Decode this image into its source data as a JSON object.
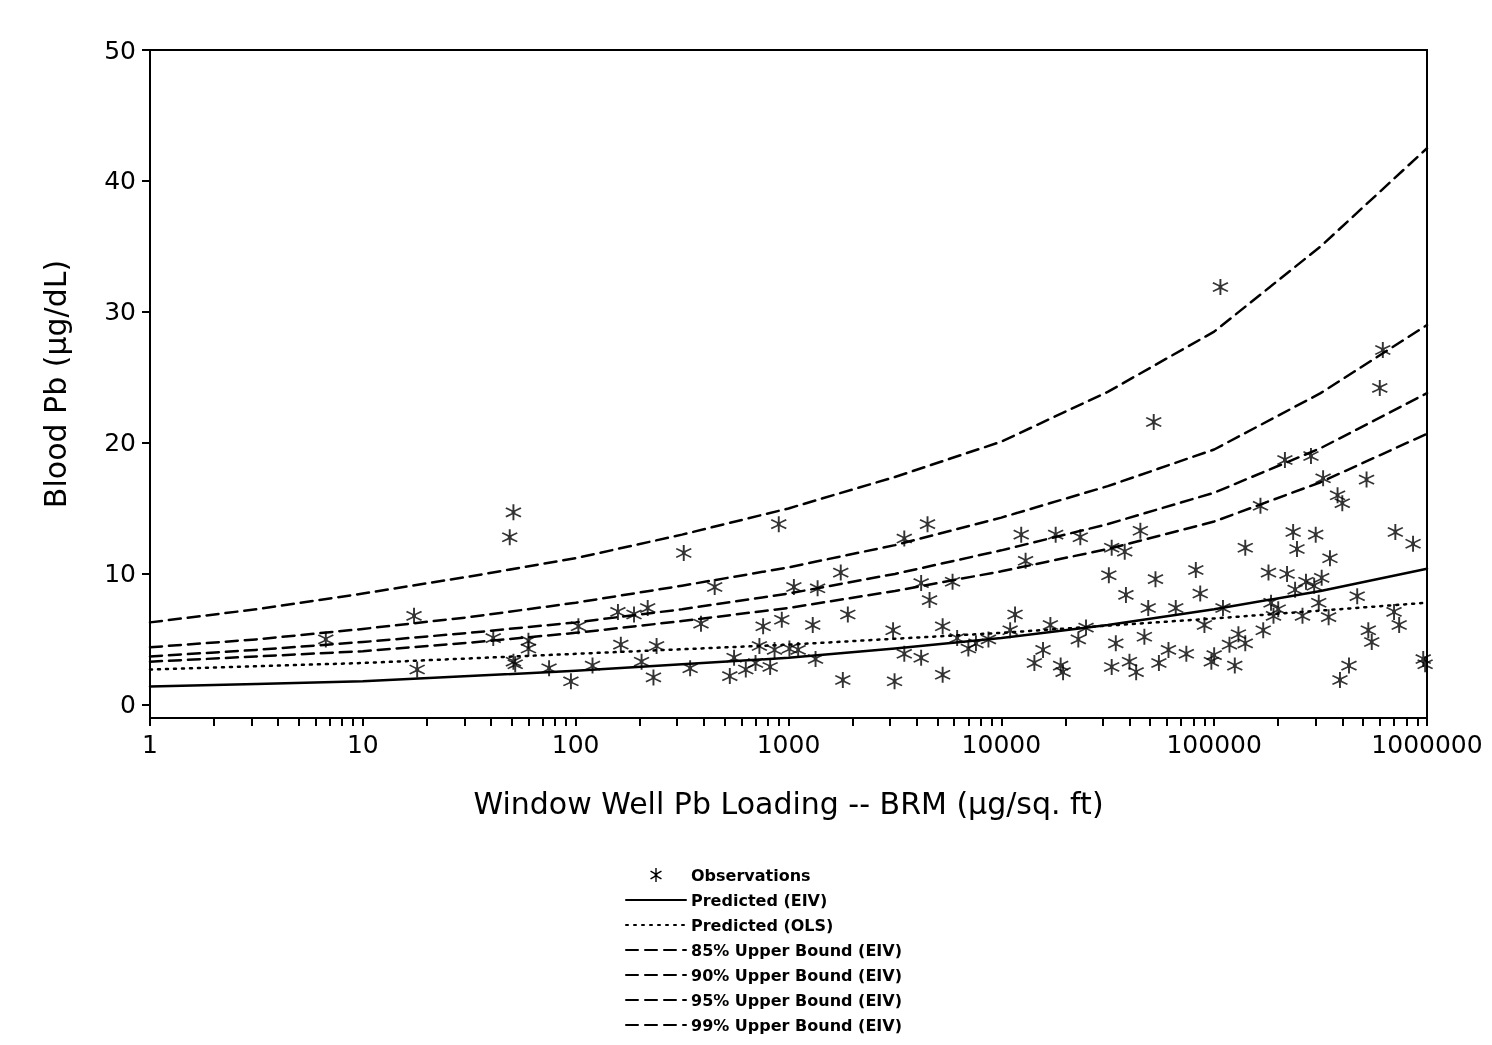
{
  "chart_data": {
    "type": "scatter",
    "xlabel": "Window Well Pb Loading -- BRM (μg/sq. ft)",
    "ylabel": "Blood Pb (μg/dL)",
    "log": "x",
    "grid": false,
    "legend": "bottom",
    "xlim": [
      1,
      1000000
    ],
    "ylim": [
      -1,
      50
    ],
    "xticks": [
      1,
      {
        "value": 2,
        "label": null
      },
      {
        "value": 3,
        "label": null
      },
      {
        "value": 4,
        "label": null
      },
      {
        "value": 5,
        "label": null
      },
      {
        "value": 6,
        "label": null
      },
      {
        "value": 7,
        "label": null
      },
      {
        "value": 8,
        "label": null
      },
      {
        "value": 9,
        "label": null
      },
      10,
      {
        "value": 20,
        "label": null
      },
      {
        "value": 30,
        "label": null
      },
      {
        "value": 40,
        "label": null
      },
      {
        "value": 50,
        "label": null
      },
      {
        "value": 60,
        "label": null
      },
      {
        "value": 70,
        "label": null
      },
      {
        "value": 80,
        "label": null
      },
      {
        "value": 90,
        "label": null
      },
      100,
      {
        "value": 200,
        "label": null
      },
      {
        "value": 300,
        "label": null
      },
      {
        "value": 400,
        "label": null
      },
      {
        "value": 500,
        "label": null
      },
      {
        "value": 600,
        "label": null
      },
      {
        "value": 700,
        "label": null
      },
      {
        "value": 800,
        "label": null
      },
      {
        "value": 900,
        "label": null
      },
      1000,
      {
        "value": 2000,
        "label": null
      },
      {
        "value": 3000,
        "label": null
      },
      {
        "value": 4000,
        "label": null
      },
      {
        "value": 5000,
        "label": null
      },
      {
        "value": 6000,
        "label": null
      },
      {
        "value": 7000,
        "label": null
      },
      {
        "value": 8000,
        "label": null
      },
      {
        "value": 9000,
        "label": null
      },
      10000,
      {
        "value": 20000,
        "label": null
      },
      {
        "value": 30000,
        "label": null
      },
      {
        "value": 40000,
        "label": null
      },
      {
        "value": 50000,
        "label": null
      },
      {
        "value": 60000,
        "label": null
      },
      {
        "value": 70000,
        "label": null
      },
      {
        "value": 80000,
        "label": null
      },
      {
        "value": 90000,
        "label": null
      },
      100000,
      {
        "value": 200000,
        "label": null
      },
      {
        "value": 300000,
        "label": null
      },
      {
        "value": 400000,
        "label": null
      },
      {
        "value": 500000,
        "label": null
      },
      {
        "value": 600000,
        "label": null
      },
      {
        "value": 700000,
        "label": null
      },
      {
        "value": 800000,
        "label": null
      },
      {
        "value": 900000,
        "label": null
      },
      1000000
    ],
    "yticks": [
      0,
      10,
      20,
      30,
      40,
      50
    ],
    "series": [
      {
        "name": "Observations",
        "type": "scatter",
        "marker": "star",
        "color": "#000000",
        "x": [
          6.7,
          17.4,
          18,
          41,
          49,
          51,
          51,
          52,
          60,
          60,
          75,
          95,
          103,
          120,
          158,
          163,
          188,
          204,
          218,
          232,
          240,
          322,
          345,
          388,
          450,
          530,
          555,
          630,
          700,
          730,
          760,
          820,
          860,
          900,
          930,
          1010,
          1060,
          1110,
          1300,
          1340,
          1370,
          1760,
          1800,
          1900,
          3100,
          3150,
          3500,
          3500,
          4200,
          4200,
          4500,
          4600,
          5300,
          5300,
          5900,
          6200,
          7000,
          7600,
          8700,
          11000,
          11600,
          12400,
          13000,
          14300,
          15700,
          17000,
          18000,
          19000,
          19500,
          23000,
          23500,
          25000,
          32000,
          33000,
          33000,
          34500,
          38000,
          38500,
          40000,
          43000,
          45000,
          47000,
          49000,
          52000,
          53000,
          55000,
          61000,
          66000,
          74000,
          82000,
          86000,
          90000,
          97000,
          100000,
          107000,
          110000,
          118000,
          125000,
          130000,
          140000,
          140000,
          165000,
          170000,
          180000,
          185000,
          190000,
          200000,
          215000,
          220000,
          235000,
          240000,
          245000,
          260000,
          270000,
          285000,
          295000,
          300000,
          310000,
          320000,
          325000,
          345000,
          350000,
          380000,
          390000,
          400000,
          430000,
          470000,
          520000,
          530000,
          550000,
          600000,
          620000,
          710000,
          700000,
          740000,
          860000,
          960000,
          980000
        ],
        "values": [
          5.0,
          6.8,
          2.7,
          5.1,
          12.8,
          14.7,
          3.3,
          3.1,
          4.9,
          4.3,
          2.8,
          1.8,
          6.0,
          3.0,
          7.1,
          4.6,
          6.9,
          3.3,
          7.4,
          2.1,
          4.5,
          11.6,
          2.8,
          6.2,
          9.0,
          2.2,
          3.6,
          2.7,
          3.2,
          4.5,
          6.0,
          2.9,
          4.2,
          13.8,
          6.5,
          4.3,
          9.0,
          4.2,
          6.1,
          3.5,
          8.9,
          10.1,
          1.9,
          6.9,
          5.7,
          1.8,
          12.7,
          3.9,
          3.6,
          9.3,
          13.8,
          8.0,
          6.0,
          2.3,
          9.4,
          5.1,
          4.3,
          4.7,
          5.0,
          5.7,
          6.9,
          13.0,
          11.0,
          3.2,
          4.2,
          6.1,
          13.0,
          3.0,
          2.5,
          5.0,
          12.8,
          5.9,
          9.9,
          12.0,
          2.9,
          4.7,
          11.7,
          8.4,
          3.3,
          2.5,
          13.3,
          5.2,
          7.4,
          21.6,
          9.6,
          3.2,
          4.2,
          7.4,
          3.9,
          10.3,
          8.5,
          6.1,
          3.3,
          3.8,
          31.9,
          7.4,
          4.6,
          3.0,
          5.4,
          12.0,
          4.7,
          15.2,
          5.7,
          10.1,
          7.8,
          6.8,
          7.3,
          18.7,
          10.0,
          13.2,
          8.8,
          11.9,
          6.8,
          9.4,
          19.0,
          9.1,
          13.0,
          7.8,
          9.7,
          17.3,
          6.7,
          11.2,
          16.0,
          1.9,
          15.4,
          3.0,
          8.3,
          17.2,
          5.7,
          4.8,
          24.2,
          27.1,
          13.2,
          7.1,
          6.1,
          12.3,
          3.5,
          3.1
        ]
      },
      {
        "name": "Predicted (EIV)",
        "type": "line",
        "line_style": "solid",
        "marker": "none",
        "color": "#000000",
        "x": [
          1,
          3.16,
          10,
          31.6,
          100,
          316,
          1000,
          3162,
          10000,
          31623,
          100000,
          316228,
          1000000
        ],
        "values": [
          1.4,
          1.6,
          1.8,
          2.2,
          2.6,
          3.1,
          3.6,
          4.3,
          5.1,
          6.1,
          7.3,
          8.7,
          10.4
        ]
      },
      {
        "name": "Predicted (OLS)",
        "type": "line",
        "line_style": "dotted",
        "marker": "none",
        "color": "#000000",
        "x": [
          1,
          3.16,
          10,
          31.6,
          100,
          316,
          1000,
          3162,
          10000,
          31623,
          100000,
          316228,
          1000000
        ],
        "values": [
          2.7,
          2.95,
          3.2,
          3.55,
          3.9,
          4.25,
          4.6,
          5.05,
          5.5,
          6.05,
          6.6,
          7.2,
          7.8
        ]
      },
      {
        "name": "85% Upper Bound (EIV)",
        "type": "line",
        "line_style": "dashed",
        "marker": "none",
        "color": "#000000",
        "x": [
          1,
          3.16,
          10,
          31.6,
          100,
          316,
          1000,
          3162,
          10000,
          31623,
          100000,
          316228,
          1000000
        ],
        "values": [
          3.3,
          3.7,
          4.1,
          4.75,
          5.5,
          6.4,
          7.4,
          8.7,
          10.2,
          11.9,
          14.0,
          17.0,
          20.7
        ]
      },
      {
        "name": "90% Upper Bound (EIV)",
        "type": "line",
        "line_style": "dashed",
        "marker": "none",
        "color": "#000000",
        "x": [
          1,
          3.16,
          10,
          31.6,
          100,
          316,
          1000,
          3162,
          10000,
          31623,
          100000,
          316228,
          1000000
        ],
        "values": [
          3.7,
          4.2,
          4.8,
          5.5,
          6.3,
          7.3,
          8.5,
          10.0,
          11.8,
          13.8,
          16.2,
          19.6,
          23.8
        ]
      },
      {
        "name": "95% Upper Bound (EIV)",
        "type": "line",
        "line_style": "dashed",
        "marker": "none",
        "color": "#000000",
        "x": [
          1,
          3.16,
          10,
          31.6,
          100,
          316,
          1000,
          3162,
          10000,
          31623,
          100000,
          316228,
          1000000
        ],
        "values": [
          4.4,
          5.0,
          5.8,
          6.7,
          7.8,
          9.1,
          10.5,
          12.2,
          14.3,
          16.7,
          19.5,
          23.8,
          29.0
        ]
      },
      {
        "name": "99% Upper Bound (EIV)",
        "type": "line",
        "line_style": "dashed",
        "marker": "none",
        "color": "#000000",
        "x": [
          1,
          3.16,
          10,
          31.6,
          100,
          316,
          1000,
          3162,
          10000,
          31623,
          100000,
          316228,
          1000000
        ],
        "values": [
          6.3,
          7.3,
          8.5,
          9.8,
          11.2,
          13.0,
          15.0,
          17.4,
          20.1,
          23.9,
          28.5,
          35.0,
          42.5
        ]
      }
    ]
  }
}
